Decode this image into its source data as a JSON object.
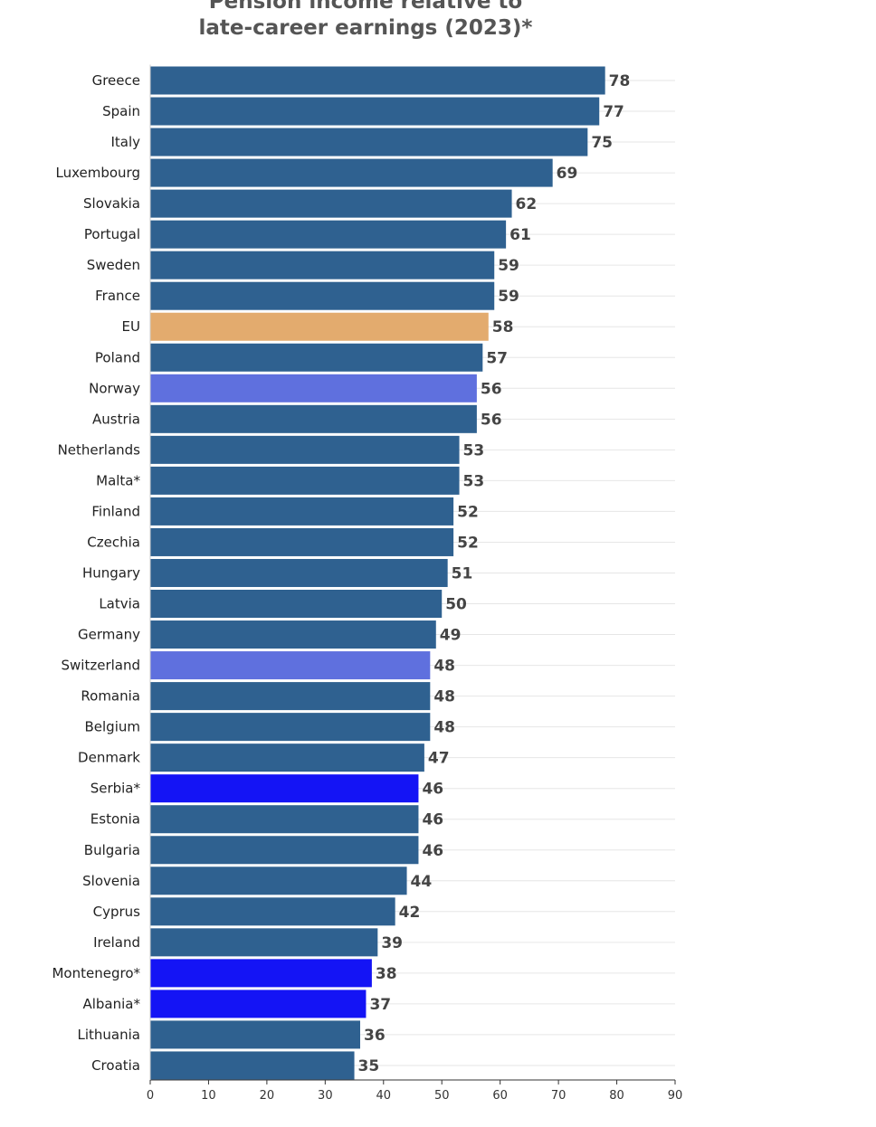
{
  "chart_data": {
    "type": "bar",
    "orientation": "horizontal",
    "title_lines": [
      "Pension income relative to",
      "late-career earnings (2023)*"
    ],
    "categories": [
      "Greece",
      "Spain",
      "Italy",
      "Luxembourg",
      "Slovakia",
      "Portugal",
      "Sweden",
      "France",
      "EU",
      "Poland",
      "Norway",
      "Austria",
      "Netherlands",
      "Malta*",
      "Finland",
      "Czechia",
      "Hungary",
      "Latvia",
      "Germany",
      "Switzerland",
      "Romania",
      "Belgium",
      "Denmark",
      "Serbia*",
      "Estonia",
      "Bulgaria",
      "Slovenia",
      "Cyprus",
      "Ireland",
      "Montenegro*",
      "Albania*",
      "Lithuania",
      "Croatia"
    ],
    "values": [
      78,
      77,
      75,
      69,
      62,
      61,
      59,
      59,
      58,
      57,
      56,
      56,
      53,
      53,
      52,
      52,
      51,
      50,
      49,
      48,
      48,
      48,
      47,
      46,
      46,
      46,
      44,
      42,
      39,
      38,
      37,
      36,
      35
    ],
    "highlight": {
      "EU": "eu",
      "Norway": "efta",
      "Switzerland": "efta",
      "Serbia*": "candidate",
      "Montenegro*": "candidate",
      "Albania*": "candidate"
    },
    "colors": {
      "default": "#2f6190",
      "eu": "#e3ab6e",
      "efta": "#5f70de",
      "candidate": "#1414f5",
      "grid": "#e6e6e6",
      "axis": "#333333"
    },
    "xlim": [
      0,
      90
    ],
    "xticks": [
      0,
      10,
      20,
      30,
      40,
      50,
      60,
      70,
      80,
      90
    ],
    "xlabel": "",
    "ylabel": "",
    "grid": true,
    "legend": "none"
  }
}
